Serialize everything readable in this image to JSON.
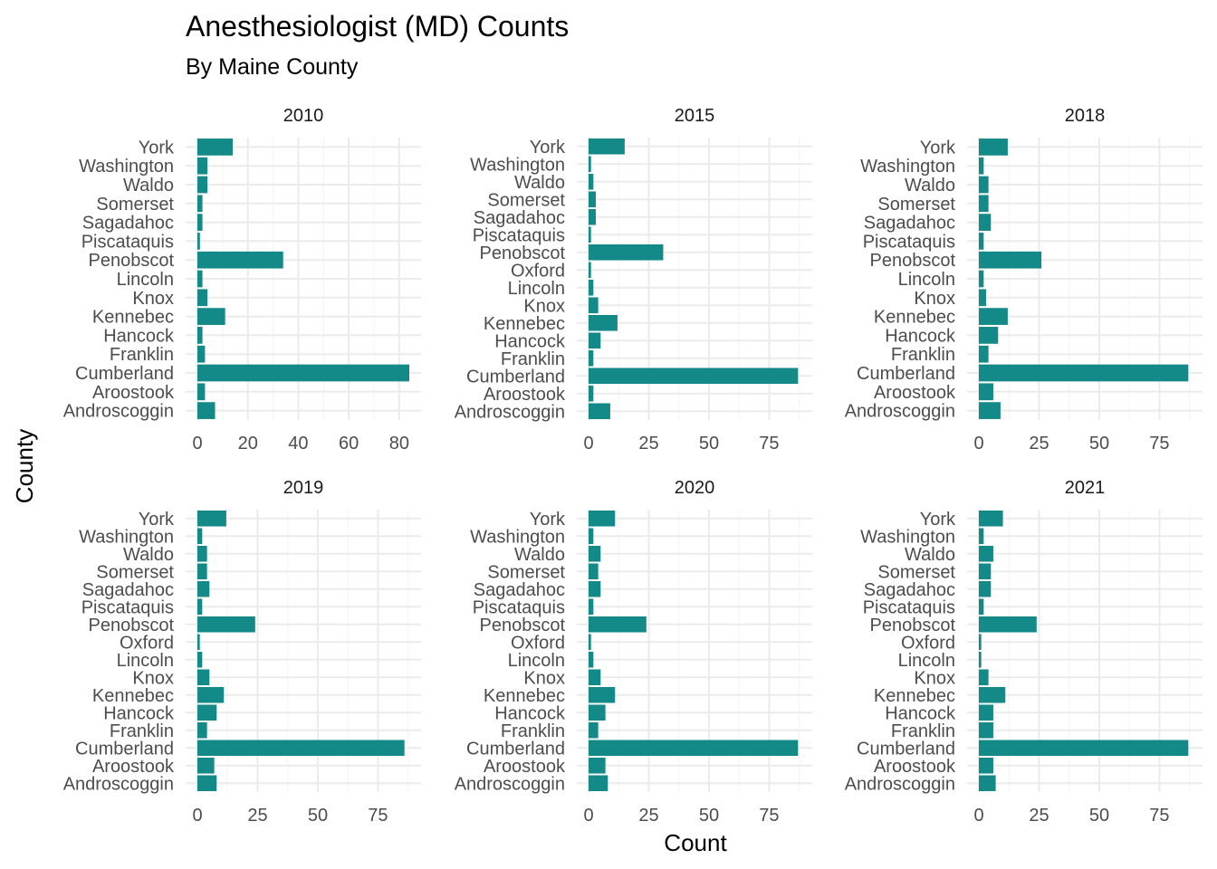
{
  "title": "Anesthesiologist (MD) Counts",
  "subtitle": "By Maine County",
  "xlabel": "Count",
  "ylabel": "County",
  "colors": {
    "bar": "#138a87",
    "grid_major": "#ebebeb",
    "grid_minor": "#f4f4f4"
  },
  "chart_data": [
    {
      "type": "bar",
      "orientation": "horizontal",
      "panel": "2010",
      "categories": [
        "York",
        "Washington",
        "Waldo",
        "Somerset",
        "Sagadahoc",
        "Piscataquis",
        "Penobscot",
        "Lincoln",
        "Knox",
        "Kennebec",
        "Hancock",
        "Franklin",
        "Cumberland",
        "Aroostook",
        "Androscoggin"
      ],
      "values": [
        14,
        4,
        4,
        2,
        2,
        1,
        34,
        2,
        4,
        11,
        2,
        3,
        84,
        3,
        7
      ],
      "xlim": [
        0,
        84
      ],
      "xticks": [
        0,
        20,
        40,
        60,
        80
      ]
    },
    {
      "type": "bar",
      "orientation": "horizontal",
      "panel": "2015",
      "categories": [
        "York",
        "Washington",
        "Waldo",
        "Somerset",
        "Sagadahoc",
        "Piscataquis",
        "Penobscot",
        "Oxford",
        "Lincoln",
        "Knox",
        "Kennebec",
        "Hancock",
        "Franklin",
        "Cumberland",
        "Aroostook",
        "Androscoggin"
      ],
      "values": [
        15,
        1,
        2,
        3,
        3,
        1,
        31,
        1,
        2,
        4,
        12,
        5,
        2,
        87,
        2,
        9
      ],
      "xlim": [
        0,
        88
      ],
      "xticks": [
        0,
        25,
        50,
        75
      ]
    },
    {
      "type": "bar",
      "orientation": "horizontal",
      "panel": "2018",
      "categories": [
        "York",
        "Washington",
        "Waldo",
        "Somerset",
        "Sagadahoc",
        "Piscataquis",
        "Penobscot",
        "Lincoln",
        "Knox",
        "Kennebec",
        "Hancock",
        "Franklin",
        "Cumberland",
        "Aroostook",
        "Androscoggin"
      ],
      "values": [
        12,
        2,
        4,
        4,
        5,
        2,
        26,
        2,
        3,
        12,
        8,
        4,
        87,
        6,
        9
      ],
      "xlim": [
        0,
        88
      ],
      "xticks": [
        0,
        25,
        50,
        75
      ]
    },
    {
      "type": "bar",
      "orientation": "horizontal",
      "panel": "2019",
      "categories": [
        "York",
        "Washington",
        "Waldo",
        "Somerset",
        "Sagadahoc",
        "Piscataquis",
        "Penobscot",
        "Oxford",
        "Lincoln",
        "Knox",
        "Kennebec",
        "Hancock",
        "Franklin",
        "Cumberland",
        "Aroostook",
        "Androscoggin"
      ],
      "values": [
        12,
        2,
        4,
        4,
        5,
        2,
        24,
        1,
        2,
        5,
        11,
        8,
        4,
        86,
        7,
        8
      ],
      "xlim": [
        0,
        88
      ],
      "xticks": [
        0,
        25,
        50,
        75
      ]
    },
    {
      "type": "bar",
      "orientation": "horizontal",
      "panel": "2020",
      "categories": [
        "York",
        "Washington",
        "Waldo",
        "Somerset",
        "Sagadahoc",
        "Piscataquis",
        "Penobscot",
        "Oxford",
        "Lincoln",
        "Knox",
        "Kennebec",
        "Hancock",
        "Franklin",
        "Cumberland",
        "Aroostook",
        "Androscoggin"
      ],
      "values": [
        11,
        2,
        5,
        4,
        5,
        2,
        24,
        1,
        2,
        5,
        11,
        7,
        4,
        87,
        7,
        8
      ],
      "xlim": [
        0,
        88
      ],
      "xticks": [
        0,
        25,
        50,
        75
      ]
    },
    {
      "type": "bar",
      "orientation": "horizontal",
      "panel": "2021",
      "categories": [
        "York",
        "Washington",
        "Waldo",
        "Somerset",
        "Sagadahoc",
        "Piscataquis",
        "Penobscot",
        "Oxford",
        "Lincoln",
        "Knox",
        "Kennebec",
        "Hancock",
        "Franklin",
        "Cumberland",
        "Aroostook",
        "Androscoggin"
      ],
      "values": [
        10,
        2,
        6,
        5,
        5,
        2,
        24,
        1,
        1,
        4,
        11,
        6,
        6,
        87,
        6,
        7
      ],
      "xlim": [
        0,
        88
      ],
      "xticks": [
        0,
        25,
        50,
        75
      ]
    }
  ]
}
